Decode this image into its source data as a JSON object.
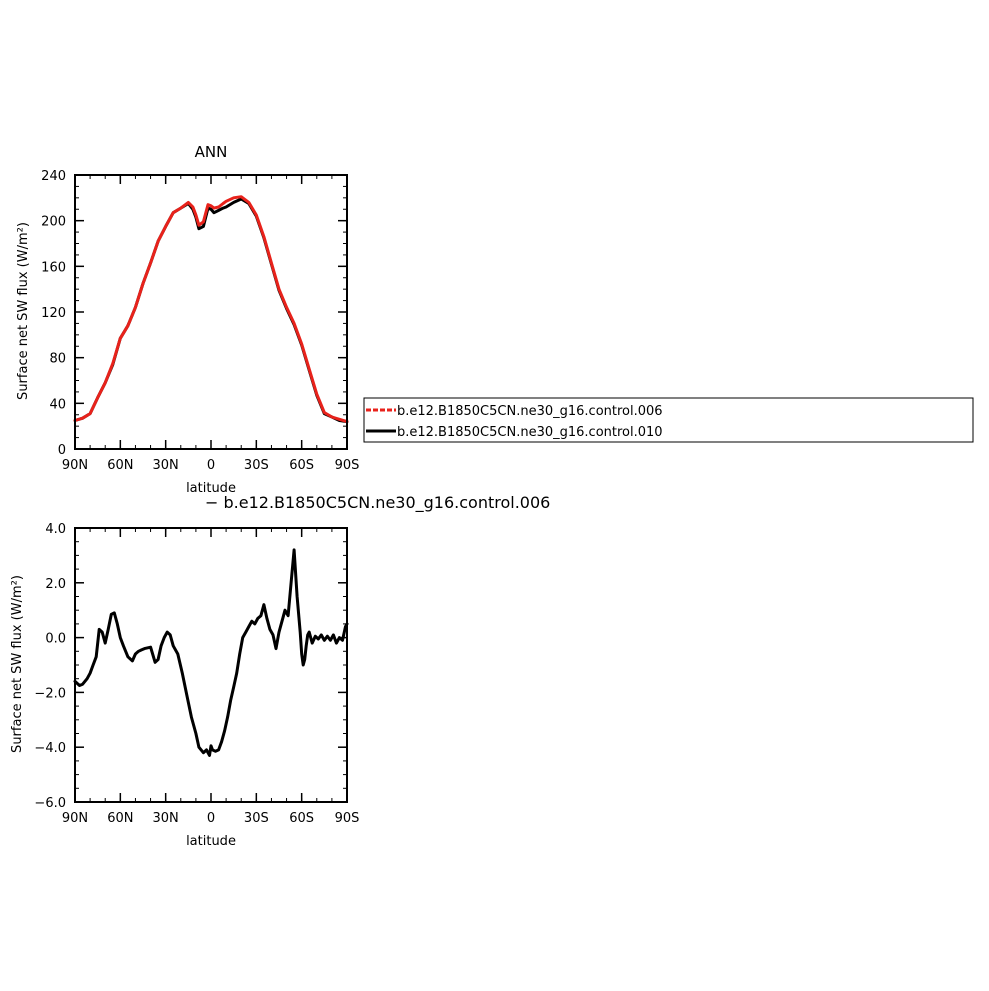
{
  "chart_data": [
    {
      "type": "line",
      "title": "ANN",
      "xlabel": "latitude",
      "ylabel": "Surface net SW flux (W/m²)",
      "xlim": [
        -90,
        90
      ],
      "ylim": [
        0,
        240
      ],
      "x_ticks": [
        {
          "value": -90,
          "label": "90N"
        },
        {
          "value": -60,
          "label": "60N"
        },
        {
          "value": -30,
          "label": "30N"
        },
        {
          "value": 0,
          "label": "0"
        },
        {
          "value": 30,
          "label": "30S"
        },
        {
          "value": 60,
          "label": "60S"
        },
        {
          "value": 90,
          "label": "90S"
        }
      ],
      "y_ticks": [
        {
          "value": 0,
          "label": "0"
        },
        {
          "value": 40,
          "label": "40"
        },
        {
          "value": 80,
          "label": "80"
        },
        {
          "value": 120,
          "label": "120"
        },
        {
          "value": 160,
          "label": "160"
        },
        {
          "value": 200,
          "label": "200"
        },
        {
          "value": 240,
          "label": "240"
        }
      ],
      "x": [
        -90,
        -85,
        -80,
        -75,
        -70,
        -65,
        -60,
        -55,
        -50,
        -45,
        -40,
        -35,
        -30,
        -25,
        -20,
        -15,
        -12,
        -10,
        -8,
        -5,
        -2,
        0,
        2,
        5,
        8,
        10,
        15,
        20,
        25,
        30,
        35,
        40,
        45,
        50,
        55,
        60,
        65,
        70,
        75,
        80,
        85,
        90
      ],
      "series": [
        {
          "name": "b.e12.B1850C5CN.ne30_g16.control.006",
          "color": "#e8221b",
          "dash": true,
          "values": [
            25,
            27,
            31,
            45,
            58,
            75,
            97,
            108,
            124,
            145,
            163,
            182,
            195,
            207,
            211,
            216,
            212,
            205,
            196,
            199,
            214,
            213,
            211,
            212,
            215,
            217,
            220,
            221,
            216,
            205,
            186,
            163,
            140,
            124,
            110,
            92,
            70,
            48,
            32,
            28,
            26,
            24
          ]
        },
        {
          "name": "b.e12.B1850C5CN.ne30_g16.control.010",
          "color": "#000000",
          "dash": false,
          "values": [
            25,
            27,
            31,
            45,
            58,
            74,
            97,
            108,
            124,
            145,
            163,
            182,
            195,
            207,
            211,
            215,
            210,
            203,
            193,
            195,
            211,
            210,
            207,
            209,
            211,
            212,
            216,
            219,
            215,
            204,
            185,
            162,
            139,
            123,
            109,
            91,
            69,
            47,
            31,
            28,
            25,
            24
          ]
        }
      ],
      "legend": {
        "position": "right",
        "entries": [
          "b.e12.B1850C5CN.ne30_g16.control.006",
          "b.e12.B1850C5CN.ne30_g16.control.010"
        ]
      },
      "grid": false
    },
    {
      "type": "line",
      "title": "− b.e12.B1850C5CN.ne30_g16.control.006",
      "xlabel": "latitude",
      "ylabel": "Surface net SW flux (W/m²)",
      "xlim": [
        -90,
        90
      ],
      "ylim": [
        -6.0,
        4.0
      ],
      "x_ticks": [
        {
          "value": -90,
          "label": "90N"
        },
        {
          "value": -60,
          "label": "60N"
        },
        {
          "value": -30,
          "label": "30N"
        },
        {
          "value": 0,
          "label": "0"
        },
        {
          "value": 30,
          "label": "30S"
        },
        {
          "value": 60,
          "label": "60S"
        },
        {
          "value": 90,
          "label": "90S"
        }
      ],
      "y_ticks": [
        {
          "value": -6.0,
          "label": "−6.0"
        },
        {
          "value": -4.0,
          "label": "−4.0"
        },
        {
          "value": -2.0,
          "label": "−2.0"
        },
        {
          "value": 0.0,
          "label": "0.0"
        },
        {
          "value": 2.0,
          "label": "2.0"
        },
        {
          "value": 4.0,
          "label": "4.0"
        }
      ],
      "x": [
        -90,
        -87,
        -85,
        -82,
        -80,
        -78,
        -76,
        -74,
        -72,
        -70,
        -68,
        -66,
        -64,
        -62,
        -60,
        -58,
        -55,
        -52,
        -50,
        -48,
        -46,
        -44,
        -40,
        -37,
        -35,
        -33,
        -31,
        -29,
        -27,
        -25,
        -22,
        -19,
        -16,
        -13,
        -10,
        -8,
        -5,
        -3,
        -1,
        0,
        1,
        3,
        5,
        7,
        9,
        11,
        13,
        15,
        17,
        19,
        21,
        23,
        25,
        27,
        29,
        31,
        33,
        35,
        37,
        39,
        41,
        43,
        45,
        47,
        49,
        51,
        53,
        55,
        57,
        59,
        60,
        61,
        62,
        63,
        64,
        65,
        67,
        69,
        71,
        73,
        75,
        77,
        79,
        81,
        83,
        85,
        87,
        89,
        90
      ],
      "series": [
        {
          "name": "",
          "color": "#000000",
          "dash": false,
          "values": [
            -1.6,
            -1.75,
            -1.7,
            -1.5,
            -1.3,
            -1.0,
            -0.7,
            0.3,
            0.2,
            -0.2,
            0.3,
            0.85,
            0.9,
            0.5,
            0.0,
            -0.3,
            -0.7,
            -0.85,
            -0.6,
            -0.5,
            -0.45,
            -0.4,
            -0.35,
            -0.9,
            -0.8,
            -0.3,
            0.0,
            0.2,
            0.1,
            -0.3,
            -0.6,
            -1.3,
            -2.1,
            -2.9,
            -3.5,
            -4.0,
            -4.2,
            -4.1,
            -4.3,
            -3.95,
            -4.1,
            -4.15,
            -4.1,
            -3.8,
            -3.4,
            -2.9,
            -2.3,
            -1.8,
            -1.3,
            -0.6,
            0.0,
            0.2,
            0.4,
            0.6,
            0.5,
            0.7,
            0.8,
            1.2,
            0.7,
            0.3,
            0.1,
            -0.4,
            0.2,
            0.6,
            1.0,
            0.8,
            2.0,
            3.2,
            1.5,
            0.2,
            -0.6,
            -1.0,
            -0.8,
            -0.3,
            0.1,
            0.2,
            -0.2,
            0.05,
            -0.05,
            0.1,
            -0.1,
            0.05,
            -0.1,
            0.1,
            -0.2,
            0.0,
            -0.1,
            0.4,
            0.5
          ]
        }
      ],
      "grid": false
    }
  ]
}
